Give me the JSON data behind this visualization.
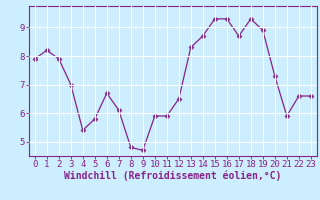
{
  "x": [
    0,
    1,
    2,
    3,
    4,
    5,
    6,
    7,
    8,
    9,
    10,
    11,
    12,
    13,
    14,
    15,
    16,
    17,
    18,
    19,
    20,
    21,
    22,
    23
  ],
  "y": [
    7.9,
    8.2,
    7.9,
    7.0,
    5.4,
    5.8,
    6.7,
    6.1,
    4.8,
    4.7,
    5.9,
    5.9,
    6.5,
    8.3,
    8.7,
    9.3,
    9.3,
    8.7,
    9.3,
    8.9,
    7.3,
    5.9,
    6.6,
    6.6
  ],
  "line_color": "#882288",
  "marker": "D",
  "markersize": 2.5,
  "linewidth": 0.9,
  "xlabel": "Windchill (Refroidissement éolien,°C)",
  "ylim": [
    4.5,
    9.75
  ],
  "yticks": [
    5,
    6,
    7,
    8,
    9
  ],
  "xticks": [
    0,
    1,
    2,
    3,
    4,
    5,
    6,
    7,
    8,
    9,
    10,
    11,
    12,
    13,
    14,
    15,
    16,
    17,
    18,
    19,
    20,
    21,
    22,
    23
  ],
  "bg_color": "#cceeff",
  "grid_color": "#ffffff",
  "axis_color": "#882288",
  "tick_color": "#882288",
  "xlabel_color": "#882288",
  "tick_fontsize": 6.5,
  "xlabel_fontsize": 7.0
}
